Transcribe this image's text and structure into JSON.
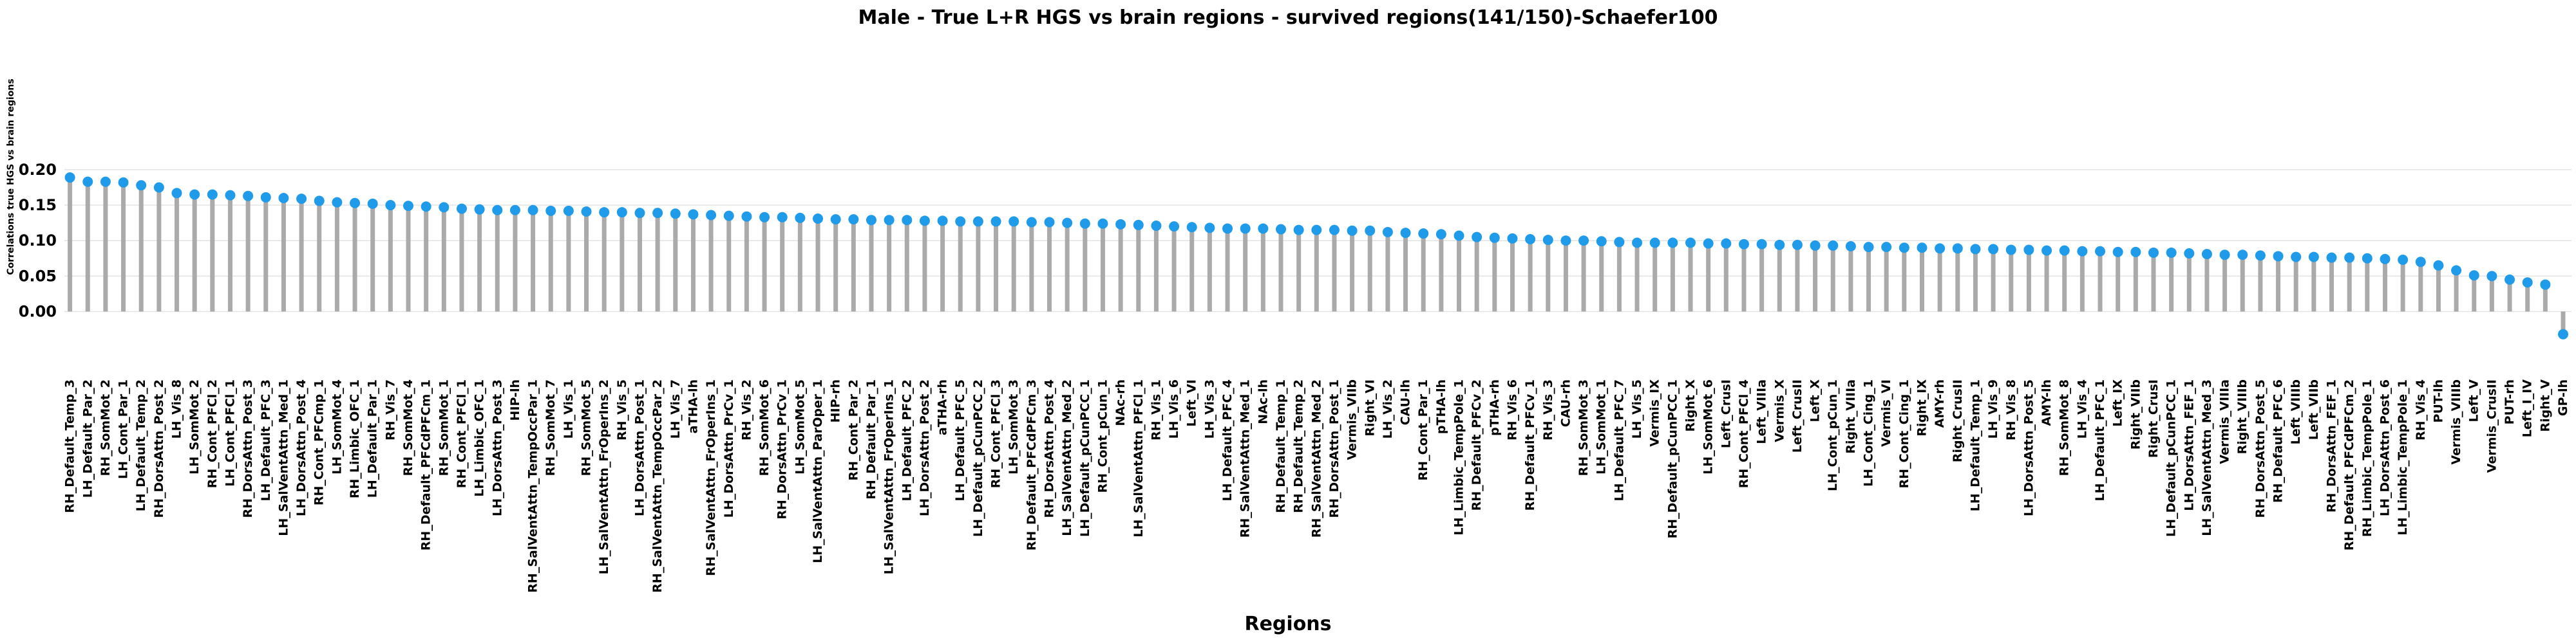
{
  "chart_data": {
    "type": "lollipop",
    "title": "Male - True L+R HGS vs brain regions - survived regions(141/150)-Schaefer100",
    "xlabel": "Regions",
    "ylabel": "Correlations true HGS vs brain regions",
    "yticks": [
      0.0,
      0.05,
      0.1,
      0.15,
      0.2
    ],
    "ytick_labels": [
      "0.00",
      "0.05",
      "0.10",
      "0.15",
      "0.20"
    ],
    "ylim": [
      -0.04,
      0.205
    ],
    "grid": "horizontal",
    "colors": {
      "stem": "#aaaaaa",
      "marker": "#1f9bea",
      "grid": "#e3e3e3"
    },
    "categories": [
      "RH_Default_Temp_3",
      "LH_Default_Par_2",
      "RH_SomMot_2",
      "LH_Cont_Par_1",
      "LH_Default_Temp_2",
      "RH_DorsAttn_Post_2",
      "LH_Vis_8",
      "LH_SomMot_2",
      "RH_Cont_PFCl_2",
      "LH_Cont_PFCl_1",
      "RH_DorsAttn_Post_3",
      "LH_Default_PFC_3",
      "LH_SalVentAttn_Med_1",
      "LH_DorsAttn_Post_4",
      "RH_Cont_PFCmp_1",
      "LH_SomMot_4",
      "RH_Limbic_OFC_1",
      "LH_Default_Par_1",
      "RH_Vis_7",
      "RH_SomMot_4",
      "RH_Default_PFCdPFCm_1",
      "RH_SomMot_1",
      "RH_Cont_PFCl_1",
      "LH_Limbic_OFC_1",
      "LH_DorsAttn_Post_3",
      "HIP-lh",
      "RH_SalVentAttn_TempOccPar_1",
      "RH_SomMot_7",
      "LH_Vis_1",
      "RH_SomMot_5",
      "LH_SalVentAttn_FrOperIns_2",
      "RH_Vis_5",
      "LH_DorsAttn_Post_1",
      "RH_SalVentAttn_TempOccPar_2",
      "LH_Vis_7",
      "aTHA-lh",
      "RH_SalVentAttn_FrOperIns_1",
      "LH_DorsAttn_PrCv_1",
      "RH_Vis_2",
      "RH_SomMot_6",
      "RH_DorsAttn_PrCv_1",
      "LH_SomMot_5",
      "LH_SalVentAttn_ParOper_1",
      "HIP-rh",
      "RH_Cont_Par_2",
      "RH_Default_Par_1",
      "LH_SalVentAttn_FrOperIns_1",
      "LH_Default_PFC_2",
      "LH_DorsAttn_Post_2",
      "aTHA-rh",
      "LH_Default_PFC_5",
      "LH_Default_pCunPCC_2",
      "RH_Cont_PFCl_3",
      "LH_SomMot_3",
      "RH_Default_PFCdPFCm_3",
      "RH_DorsAttn_Post_4",
      "LH_SalVentAttn_Med_2",
      "LH_Default_pCunPCC_1",
      "RH_Cont_pCun_1",
      "NAc-rh",
      "LH_SalVentAttn_PFCl_1",
      "RH_Vis_1",
      "LH_Vis_6",
      "Left_VI",
      "LH_Vis_3",
      "LH_Default_PFC_4",
      "RH_SalVentAttn_Med_1",
      "NAc-lh",
      "RH_Default_Temp_1",
      "RH_Default_Temp_2",
      "RH_SalVentAttn_Med_2",
      "RH_DorsAttn_Post_1",
      "Vermis_VIIb",
      "Right_VI",
      "LH_Vis_2",
      "CAU-lh",
      "RH_Cont_Par_1",
      "pTHA-lh",
      "LH_Limbic_TempPole_1",
      "RH_Default_PFCv_2",
      "pTHA-rh",
      "RH_Vis_6",
      "RH_Default_PFCv_1",
      "RH_Vis_3",
      "CAU-rh",
      "RH_SomMot_3",
      "LH_SomMot_1",
      "LH_Default_PFC_7",
      "LH_Vis_5",
      "Vermis_IX",
      "RH_Default_pCunPCC_1",
      "Right_X",
      "LH_SomMot_6",
      "Left_CrusI",
      "RH_Cont_PFCl_4",
      "Left_VIIIa",
      "Vermis_X",
      "Left_CrusII",
      "Left_X",
      "LH_Cont_pCun_1",
      "Right_VIIIa",
      "LH_Cont_Cing_1",
      "Vermis_VI",
      "RH_Cont_Cing_1",
      "Right_IX",
      "AMY-rh",
      "Right_CrusII",
      "LH_Default_Temp_1",
      "LH_Vis_9",
      "RH_Vis_8",
      "LH_DorsAttn_Post_5",
      "AMY-lh",
      "RH_SomMot_8",
      "LH_Vis_4",
      "LH_Default_PFC_1",
      "Left_IX",
      "Right_VIIb",
      "Right_CrusI",
      "LH_Default_pCunPCC_1",
      "LH_DorsAttn_FEF_1",
      "LH_SalVentAttn_Med_3",
      "Vermis_VIIIa",
      "Right_VIIIb",
      "RH_DorsAttn_Post_5",
      "RH_Default_PFC_6",
      "Left_VIIIb",
      "Left_VIIb",
      "RH_DorsAttn_FEF_1",
      "RH_Default_PFCdPFCm_2",
      "RH_Limbic_TempPole_1",
      "LH_DorsAttn_Post_6",
      "LH_Limbic_TempPole_1",
      "RH_Vis_4",
      "PUT-lh",
      "Vermis_VIIIb",
      "Left_V",
      "Vermis_CrusII",
      "PUT-rh",
      "Left_I_IV",
      "Right_V",
      "GP-lh"
    ],
    "values": [
      0.189,
      0.183,
      0.183,
      0.182,
      0.178,
      0.175,
      0.167,
      0.165,
      0.165,
      0.164,
      0.163,
      0.161,
      0.16,
      0.159,
      0.156,
      0.154,
      0.153,
      0.152,
      0.15,
      0.149,
      0.148,
      0.147,
      0.145,
      0.144,
      0.143,
      0.143,
      0.143,
      0.142,
      0.142,
      0.141,
      0.14,
      0.14,
      0.139,
      0.139,
      0.138,
      0.137,
      0.136,
      0.135,
      0.134,
      0.133,
      0.133,
      0.132,
      0.131,
      0.13,
      0.13,
      0.129,
      0.129,
      0.129,
      0.128,
      0.128,
      0.127,
      0.127,
      0.127,
      0.127,
      0.126,
      0.126,
      0.125,
      0.124,
      0.124,
      0.123,
      0.122,
      0.121,
      0.12,
      0.119,
      0.118,
      0.117,
      0.117,
      0.117,
      0.116,
      0.115,
      0.115,
      0.115,
      0.114,
      0.114,
      0.112,
      0.111,
      0.11,
      0.109,
      0.107,
      0.105,
      0.104,
      0.103,
      0.102,
      0.101,
      0.1,
      0.1,
      0.099,
      0.098,
      0.097,
      0.097,
      0.097,
      0.097,
      0.096,
      0.096,
      0.095,
      0.095,
      0.094,
      0.094,
      0.093,
      0.093,
      0.092,
      0.091,
      0.091,
      0.09,
      0.09,
      0.089,
      0.089,
      0.088,
      0.088,
      0.087,
      0.087,
      0.086,
      0.086,
      0.085,
      0.085,
      0.084,
      0.084,
      0.083,
      0.083,
      0.082,
      0.081,
      0.08,
      0.08,
      0.079,
      0.078,
      0.077,
      0.077,
      0.076,
      0.076,
      0.075,
      0.074,
      0.073,
      0.07,
      0.065,
      0.058,
      0.051,
      0.05,
      0.045,
      0.041,
      0.038,
      -0.032
    ]
  }
}
